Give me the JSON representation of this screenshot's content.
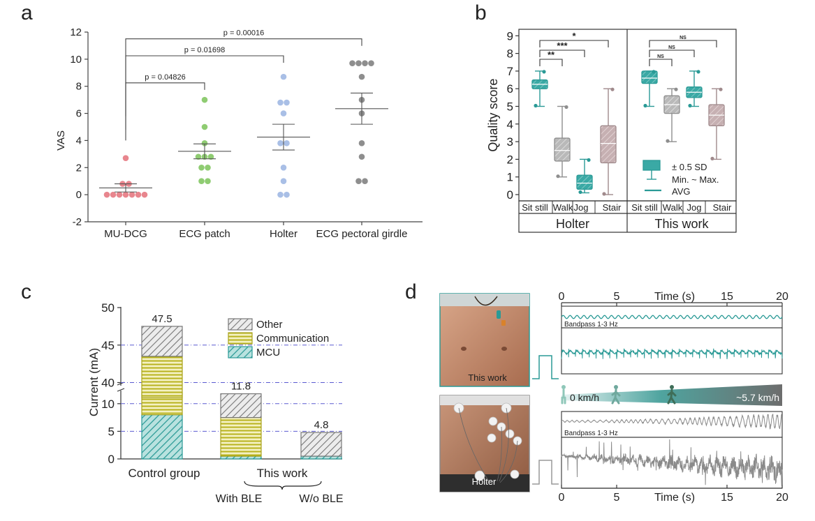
{
  "figure": {
    "panel_labels": [
      "a",
      "b",
      "c",
      "d"
    ]
  },
  "chart_data": [
    {
      "id": "a",
      "type": "scatter",
      "title": "",
      "xlabel": "",
      "ylabel": "VAS",
      "ylim": [
        -2,
        12
      ],
      "yticks": [
        -2,
        0,
        2,
        4,
        6,
        8,
        10,
        12
      ],
      "categories": [
        "MU-DCG",
        "ECG patch",
        "Holter",
        "ECG pectoral girdle"
      ],
      "colors": [
        "#e8868e",
        "#8fcc72",
        "#a9bfe6",
        "#8e8e8e"
      ],
      "series": [
        {
          "name": "MU-DCG",
          "points": [
            2.7,
            0.8,
            0.8,
            0,
            0,
            0,
            0,
            0,
            0,
            0
          ],
          "mean": 0.5,
          "sem": 0.3
        },
        {
          "name": "ECG patch",
          "points": [
            7.0,
            5.0,
            3.8,
            2.8,
            2.8,
            2.8,
            2.0,
            2.0,
            1.0,
            1.0
          ],
          "mean": 3.2,
          "sem": 0.55
        },
        {
          "name": "Holter",
          "points": [
            8.7,
            6.8,
            6.8,
            6.0,
            3.8,
            3.8,
            2.0,
            1.0,
            0,
            0
          ],
          "mean": 4.25,
          "sem": 0.95
        },
        {
          "name": "ECG pectoral girdle",
          "points": [
            9.7,
            9.7,
            9.7,
            9.7,
            8.7,
            7.0,
            6.0,
            3.8,
            2.8,
            1.0,
            1.0
          ],
          "mean": 6.35,
          "sem": 1.15
        }
      ],
      "annotations": [
        {
          "from": "MU-DCG",
          "to": "ECG patch",
          "label": "p = 0.04826"
        },
        {
          "from": "MU-DCG",
          "to": "Holter",
          "label": "p = 0.01698"
        },
        {
          "from": "MU-DCG",
          "to": "ECG pectoral girdle",
          "label": "p = 0.00016"
        }
      ]
    },
    {
      "id": "b",
      "type": "box",
      "ylabel": "Quality score",
      "ylim": [
        0,
        9
      ],
      "yticks": [
        0,
        1,
        2,
        3,
        4,
        5,
        6,
        7,
        8,
        9
      ],
      "groups": [
        "Holter",
        "This work"
      ],
      "categories": [
        "Sit still",
        "Walk",
        "Jog",
        "Stair"
      ],
      "colors": {
        "sit_still": "#2a9a96",
        "walk": "#a6a6a6",
        "jog": "#56a8a4",
        "stair": "#bca7aa"
      },
      "boxes": [
        {
          "group": "Holter",
          "cat": "Sit still",
          "min": 5.0,
          "q1": 6.0,
          "q3": 6.5,
          "max": 7.0,
          "avg": 6.25
        },
        {
          "group": "Holter",
          "cat": "Walk",
          "min": 1.0,
          "q1": 1.9,
          "q3": 3.2,
          "max": 5.0,
          "avg": 2.5
        },
        {
          "group": "Holter",
          "cat": "Jog",
          "min": 0.1,
          "q1": 0.3,
          "q3": 1.1,
          "max": 2.0,
          "avg": 0.65
        },
        {
          "group": "Holter",
          "cat": "Stair",
          "min": 0.0,
          "q1": 1.8,
          "q3": 3.9,
          "max": 6.0,
          "avg": 2.9
        },
        {
          "group": "This work",
          "cat": "Sit still",
          "min": 5.0,
          "q1": 6.3,
          "q3": 7.0,
          "max": 7.0,
          "avg": 6.6
        },
        {
          "group": "This work",
          "cat": "Walk",
          "min": 3.0,
          "q1": 4.6,
          "q3": 5.6,
          "max": 6.0,
          "avg": 5.1
        },
        {
          "group": "This work",
          "cat": "Jog",
          "min": 5.0,
          "q1": 5.5,
          "q3": 6.1,
          "max": 7.0,
          "avg": 5.8
        },
        {
          "group": "This work",
          "cat": "Stair",
          "min": 2.0,
          "q1": 3.9,
          "q3": 5.1,
          "max": 6.0,
          "avg": 4.5
        }
      ],
      "significance": [
        {
          "group": "Holter",
          "from": "Sit still",
          "to": "Walk",
          "label": "**"
        },
        {
          "group": "Holter",
          "from": "Sit still",
          "to": "Jog",
          "label": "***"
        },
        {
          "group": "Holter",
          "from": "Sit still",
          "to": "Stair",
          "label": "*"
        },
        {
          "group": "This work",
          "from": "Sit still",
          "to": "Walk",
          "label": "NS"
        },
        {
          "group": "This work",
          "from": "Sit still",
          "to": "Jog",
          "label": "NS"
        },
        {
          "group": "This work",
          "from": "Sit still",
          "to": "Stair",
          "label": "NS"
        }
      ],
      "legend": [
        "± 0.5 SD",
        "Min. ~ Max.",
        "AVG"
      ]
    },
    {
      "id": "c",
      "type": "bar",
      "ylabel": "Current (mA)",
      "yticks_lower": [
        0,
        5,
        10
      ],
      "yticks_upper": [
        40,
        45,
        50
      ],
      "axis_break": [
        12,
        38
      ],
      "categories": [
        "Control group",
        "With BLE",
        "W/o BLE"
      ],
      "group_label": "This work",
      "components": [
        "MCU",
        "Communication",
        "Other"
      ],
      "legend": [
        "Other",
        "Communication",
        "MCU"
      ],
      "colors": {
        "MCU": "#3aa9a5",
        "Communication": "#c9c63a",
        "Other": "#7a7a7a"
      },
      "stacks": [
        {
          "category": "Control group",
          "MCU": 8.0,
          "Communication": 35.5,
          "Other": 4.0,
          "total": "47.5"
        },
        {
          "category": "With BLE",
          "MCU": 0.5,
          "Communication": 7.0,
          "Other": 4.3,
          "total": "11.8"
        },
        {
          "category": "W/o BLE",
          "MCU": 0.5,
          "Communication": 0.0,
          "Other": 4.3,
          "total": "4.8"
        }
      ]
    },
    {
      "id": "d",
      "type": "line",
      "xlabel": "Time (s)",
      "xticks": [
        0,
        5,
        15,
        20
      ],
      "xlim": [
        0,
        20
      ],
      "photo_labels": [
        "This work",
        "Holter"
      ],
      "speed_labels": [
        "0 km/h",
        "~5.7 km/h"
      ],
      "traces": [
        {
          "name": "This work bandpass",
          "label": "Bandpass 1-3 Hz",
          "color": "#2a9a96"
        },
        {
          "name": "This work raw",
          "label": "",
          "color": "#2a9a96"
        },
        {
          "name": "Holter bandpass",
          "label": "Bandpass 1-3 Hz",
          "color": "#8a8a8a"
        },
        {
          "name": "Holter raw",
          "label": "",
          "color": "#8a8a8a"
        }
      ]
    }
  ]
}
